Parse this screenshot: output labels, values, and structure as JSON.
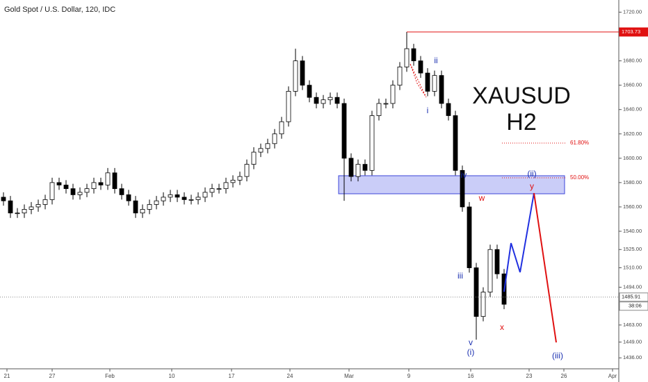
{
  "chart_data": {
    "type": "candlestick",
    "title": "Gold Spot / U.S. Dollar, 120, IDC",
    "open": [
      1568,
      1565,
      1555,
      1555,
      1558,
      1560,
      1562,
      1566,
      1580,
      1578,
      1575,
      1570,
      1572,
      1575,
      1580,
      1578,
      1588,
      1575,
      1570,
      1565,
      1555,
      1558,
      1562,
      1565,
      1568,
      1570,
      1568,
      1566,
      1566,
      1568,
      1572,
      1575,
      1575,
      1580,
      1582,
      1585,
      1595,
      1605,
      1608,
      1612,
      1620,
      1630,
      1655,
      1680,
      1660,
      1650,
      1645,
      1648,
      1650,
      1645,
      1600,
      1585,
      1595,
      1590,
      1635,
      1645,
      1645,
      1660,
      1675,
      1690,
      1680,
      1670,
      1655,
      1668,
      1645,
      1635,
      1590,
      1560,
      1510,
      1470,
      1490,
      1525,
      1505
    ],
    "high": [
      1572,
      1569,
      1559,
      1562,
      1564,
      1566,
      1570,
      1584,
      1584,
      1582,
      1579,
      1576,
      1579,
      1584,
      1584,
      1592,
      1592,
      1579,
      1574,
      1569,
      1562,
      1566,
      1569,
      1572,
      1574,
      1574,
      1572,
      1570,
      1572,
      1576,
      1579,
      1579,
      1584,
      1586,
      1589,
      1599,
      1609,
      1612,
      1616,
      1624,
      1634,
      1659,
      1690,
      1684,
      1664,
      1654,
      1652,
      1654,
      1654,
      1649,
      1604,
      1599,
      1599,
      1639,
      1649,
      1649,
      1664,
      1679,
      1703.73,
      1694,
      1684,
      1674,
      1672,
      1672,
      1649,
      1639,
      1594,
      1564,
      1514,
      1494,
      1529,
      1529,
      1509
    ],
    "low": [
      1561,
      1551,
      1551,
      1551,
      1554,
      1556,
      1558,
      1562,
      1574,
      1571,
      1566,
      1566,
      1568,
      1571,
      1574,
      1574,
      1571,
      1566,
      1561,
      1551,
      1551,
      1554,
      1558,
      1561,
      1564,
      1564,
      1562,
      1562,
      1562,
      1564,
      1568,
      1571,
      1571,
      1576,
      1578,
      1581,
      1591,
      1601,
      1604,
      1608,
      1616,
      1626,
      1651,
      1656,
      1646,
      1641,
      1641,
      1644,
      1641,
      1565,
      1581,
      1581,
      1586,
      1586,
      1631,
      1641,
      1641,
      1656,
      1671,
      1676,
      1666,
      1651,
      1651,
      1641,
      1631,
      1586,
      1556,
      1506,
      1451,
      1466,
      1486,
      1501,
      1476
    ],
    "close": [
      1565,
      1555,
      1555,
      1558,
      1560,
      1562,
      1566,
      1580,
      1578,
      1575,
      1570,
      1572,
      1575,
      1580,
      1578,
      1588,
      1575,
      1570,
      1565,
      1555,
      1558,
      1562,
      1565,
      1568,
      1570,
      1568,
      1566,
      1566,
      1568,
      1572,
      1575,
      1575,
      1580,
      1582,
      1585,
      1595,
      1605,
      1608,
      1612,
      1620,
      1630,
      1655,
      1680,
      1660,
      1650,
      1645,
      1648,
      1650,
      1645,
      1600,
      1585,
      1595,
      1590,
      1635,
      1645,
      1645,
      1660,
      1675,
      1690,
      1680,
      1670,
      1655,
      1668,
      1645,
      1635,
      1590,
      1560,
      1510,
      1470,
      1490,
      1525,
      1505,
      1480
    ],
    "up_color": "#ffffff",
    "down_color": "#000000",
    "outline_color": "#000000",
    "xlim": [
      -0.5,
      88.5
    ],
    "xticks": [
      {
        "value": 0.5,
        "label": "21"
      },
      {
        "value": 7,
        "label": "27"
      },
      {
        "value": 15.3,
        "label": "Feb"
      },
      {
        "value": 24.2,
        "label": "10"
      },
      {
        "value": 32.8,
        "label": "17"
      },
      {
        "value": 41.2,
        "label": "24"
      },
      {
        "value": 49.7,
        "label": "Mar"
      },
      {
        "value": 58.3,
        "label": "9"
      },
      {
        "value": 67.2,
        "label": "16"
      },
      {
        "value": 75.6,
        "label": "23"
      },
      {
        "value": 80.6,
        "label": "26"
      },
      {
        "value": 87.6,
        "label": "Apr"
      }
    ],
    "ylim": [
      1427,
      1730
    ],
    "yticks": [
      {
        "value": 1720,
        "label": "1720.00"
      },
      {
        "value": 1680,
        "label": "1680.00"
      },
      {
        "value": 1660,
        "label": "1660.00"
      },
      {
        "value": 1640,
        "label": "1640.00"
      },
      {
        "value": 1620,
        "label": "1620.00"
      },
      {
        "value": 1600,
        "label": "1600.00"
      },
      {
        "value": 1580,
        "label": "1580.00"
      },
      {
        "value": 1560,
        "label": "1560.00"
      },
      {
        "value": 1540,
        "label": "1540.00"
      },
      {
        "value": 1525,
        "label": "1525.00"
      },
      {
        "value": 1510,
        "label": "1510.00"
      },
      {
        "value": 1494,
        "label": "1494.00"
      },
      {
        "value": 1463,
        "label": "1463.00"
      },
      {
        "value": 1449,
        "label": "1449.00"
      },
      {
        "value": 1436,
        "label": "1436.00"
      }
    ],
    "price_lines": [
      {
        "value": 1703.73,
        "label": "1703.73",
        "color": "#e01010"
      },
      {
        "value": 1485.91,
        "label": "1485.91",
        "color": "#888888"
      }
    ],
    "countdown": "38:06",
    "annotations": [
      "XAUSUD",
      "H2",
      "ii",
      "i",
      "iv",
      "(ii)",
      "y",
      "w",
      "iii",
      "v",
      "(i)",
      "x",
      "(iii)",
      "61.80%",
      "50.00%"
    ]
  }
}
